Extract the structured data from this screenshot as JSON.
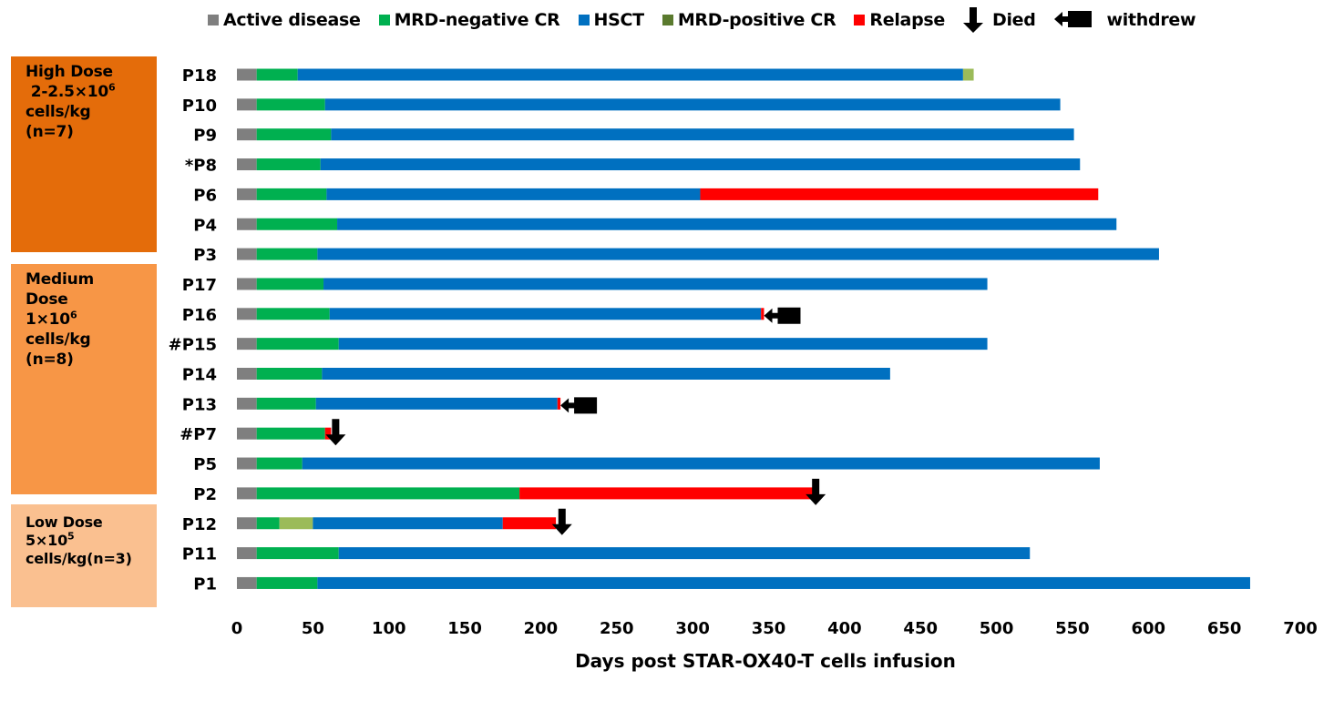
{
  "chart_data": {
    "type": "bar",
    "orientation": "horizontal-stacked-swimmer",
    "title": "",
    "xlabel": "Days post STAR-OX40-T cells infusion",
    "ylabel": "",
    "xlim": [
      0,
      700
    ],
    "xticks": [
      0,
      50,
      100,
      150,
      200,
      250,
      300,
      350,
      400,
      450,
      500,
      550,
      600,
      650,
      700
    ],
    "grid": false,
    "legend_position": "top",
    "legend": [
      {
        "key": "active",
        "label": "Active disease",
        "color": "#7f7f7f",
        "kind": "swatch"
      },
      {
        "key": "mrdneg",
        "label": "MRD-negative CR",
        "color": "#00b050",
        "kind": "swatch"
      },
      {
        "key": "hsct",
        "label": "HSCT",
        "color": "#0070c0",
        "kind": "swatch"
      },
      {
        "key": "mrdpos",
        "label": "MRD-positive CR",
        "color": "#9bbb59",
        "kind": "swatch",
        "swatch_color": "#5a7a2e"
      },
      {
        "key": "relapse",
        "label": "Relapse",
        "color": "#ff0000",
        "kind": "swatch"
      },
      {
        "key": "died",
        "label": "Died",
        "color": "#000000",
        "kind": "down-arrow"
      },
      {
        "key": "withdrew",
        "label": "withdrew",
        "color": "#000000",
        "kind": "left-arrow"
      }
    ],
    "groups": [
      {
        "name": "High Dose",
        "lines": [
          "High Dose",
          " 2-2.5×10^6",
          "cells/kg",
          "(n=7)"
        ],
        "color": "#e46c0a",
        "patients": [
          "P18",
          "P10",
          "P9",
          "*P8",
          "P6",
          "P4",
          "P3"
        ]
      },
      {
        "name": "Medium Dose",
        "lines": [
          "Medium",
          "Dose",
          "1×10^6",
          "cells/kg",
          "(n=8)"
        ],
        "color": "#f79646",
        "patients": [
          "P17",
          "P16",
          "#P15",
          "P14",
          "P13",
          "#P7",
          "P5",
          "P2"
        ]
      },
      {
        "name": "Low Dose",
        "lines": [
          "Low Dose",
          "5×10^5",
          "cells/kg(n=3)"
        ],
        "color": "#fac090",
        "patients": [
          "P12",
          "P11",
          "P1"
        ]
      }
    ],
    "series": [
      {
        "patient": "P18",
        "segments": [
          {
            "state": "active",
            "start": 0,
            "end": 13
          },
          {
            "state": "mrdneg",
            "start": 13,
            "end": 40
          },
          {
            "state": "hsct",
            "start": 40,
            "end": 478
          },
          {
            "state": "mrdpos",
            "start": 478,
            "end": 485
          }
        ],
        "event": null
      },
      {
        "patient": "P10",
        "segments": [
          {
            "state": "active",
            "start": 0,
            "end": 13
          },
          {
            "state": "mrdneg",
            "start": 13,
            "end": 58
          },
          {
            "state": "hsct",
            "start": 58,
            "end": 542
          }
        ],
        "event": null
      },
      {
        "patient": "P9",
        "segments": [
          {
            "state": "active",
            "start": 0,
            "end": 13
          },
          {
            "state": "mrdneg",
            "start": 13,
            "end": 62
          },
          {
            "state": "hsct",
            "start": 62,
            "end": 551
          }
        ],
        "event": null
      },
      {
        "patient": "*P8",
        "segments": [
          {
            "state": "active",
            "start": 0,
            "end": 13
          },
          {
            "state": "mrdneg",
            "start": 13,
            "end": 55
          },
          {
            "state": "hsct",
            "start": 55,
            "end": 555
          }
        ],
        "event": null
      },
      {
        "patient": "P6",
        "segments": [
          {
            "state": "active",
            "start": 0,
            "end": 13
          },
          {
            "state": "mrdneg",
            "start": 13,
            "end": 59
          },
          {
            "state": "hsct",
            "start": 59,
            "end": 305
          },
          {
            "state": "relapse",
            "start": 305,
            "end": 567
          }
        ],
        "event": null
      },
      {
        "patient": "P4",
        "segments": [
          {
            "state": "active",
            "start": 0,
            "end": 13
          },
          {
            "state": "mrdneg",
            "start": 13,
            "end": 66
          },
          {
            "state": "hsct",
            "start": 66,
            "end": 579
          }
        ],
        "event": null
      },
      {
        "patient": "P3",
        "segments": [
          {
            "state": "active",
            "start": 0,
            "end": 13
          },
          {
            "state": "mrdneg",
            "start": 13,
            "end": 53
          },
          {
            "state": "hsct",
            "start": 53,
            "end": 607
          }
        ],
        "event": null
      },
      {
        "patient": "P17",
        "segments": [
          {
            "state": "active",
            "start": 0,
            "end": 13
          },
          {
            "state": "mrdneg",
            "start": 13,
            "end": 57
          },
          {
            "state": "hsct",
            "start": 57,
            "end": 494
          }
        ],
        "event": null
      },
      {
        "patient": "P16",
        "segments": [
          {
            "state": "active",
            "start": 0,
            "end": 13
          },
          {
            "state": "mrdneg",
            "start": 13,
            "end": 61
          },
          {
            "state": "hsct",
            "start": 61,
            "end": 345
          },
          {
            "state": "relapse",
            "start": 345,
            "end": 347
          }
        ],
        "event": {
          "type": "withdrew",
          "day": 347
        }
      },
      {
        "patient": "#P15",
        "segments": [
          {
            "state": "active",
            "start": 0,
            "end": 13
          },
          {
            "state": "mrdneg",
            "start": 13,
            "end": 67
          },
          {
            "state": "hsct",
            "start": 67,
            "end": 494
          }
        ],
        "event": null
      },
      {
        "patient": "P14",
        "segments": [
          {
            "state": "active",
            "start": 0,
            "end": 13
          },
          {
            "state": "mrdneg",
            "start": 13,
            "end": 56
          },
          {
            "state": "hsct",
            "start": 56,
            "end": 430
          }
        ],
        "event": null
      },
      {
        "patient": "P13",
        "segments": [
          {
            "state": "active",
            "start": 0,
            "end": 13
          },
          {
            "state": "mrdneg",
            "start": 13,
            "end": 52
          },
          {
            "state": "hsct",
            "start": 52,
            "end": 211
          },
          {
            "state": "relapse",
            "start": 211,
            "end": 213
          }
        ],
        "event": {
          "type": "withdrew",
          "day": 213
        }
      },
      {
        "patient": "#P7",
        "segments": [
          {
            "state": "active",
            "start": 0,
            "end": 13
          },
          {
            "state": "mrdneg",
            "start": 13,
            "end": 58
          },
          {
            "state": "relapse",
            "start": 58,
            "end": 62
          }
        ],
        "event": {
          "type": "died",
          "day": 65
        }
      },
      {
        "patient": "P5",
        "segments": [
          {
            "state": "active",
            "start": 0,
            "end": 13
          },
          {
            "state": "mrdneg",
            "start": 13,
            "end": 43
          },
          {
            "state": "hsct",
            "start": 43,
            "end": 568
          }
        ],
        "event": null
      },
      {
        "patient": "P2",
        "segments": [
          {
            "state": "active",
            "start": 0,
            "end": 13
          },
          {
            "state": "mrdneg",
            "start": 13,
            "end": 186
          },
          {
            "state": "relapse",
            "start": 186,
            "end": 379
          }
        ],
        "event": {
          "type": "died",
          "day": 381
        }
      },
      {
        "patient": "P12",
        "segments": [
          {
            "state": "active",
            "start": 0,
            "end": 13
          },
          {
            "state": "mrdneg",
            "start": 13,
            "end": 28
          },
          {
            "state": "mrdpos",
            "start": 28,
            "end": 50
          },
          {
            "state": "hsct",
            "start": 50,
            "end": 175
          },
          {
            "state": "relapse",
            "start": 175,
            "end": 210
          }
        ],
        "event": {
          "type": "died",
          "day": 214
        }
      },
      {
        "patient": "P11",
        "segments": [
          {
            "state": "active",
            "start": 0,
            "end": 13
          },
          {
            "state": "mrdneg",
            "start": 13,
            "end": 67
          },
          {
            "state": "hsct",
            "start": 67,
            "end": 522
          }
        ],
        "event": null
      },
      {
        "patient": "P1",
        "segments": [
          {
            "state": "active",
            "start": 0,
            "end": 13
          },
          {
            "state": "mrdneg",
            "start": 13,
            "end": 53
          },
          {
            "state": "hsct",
            "start": 53,
            "end": 667
          }
        ],
        "event": null
      }
    ]
  }
}
